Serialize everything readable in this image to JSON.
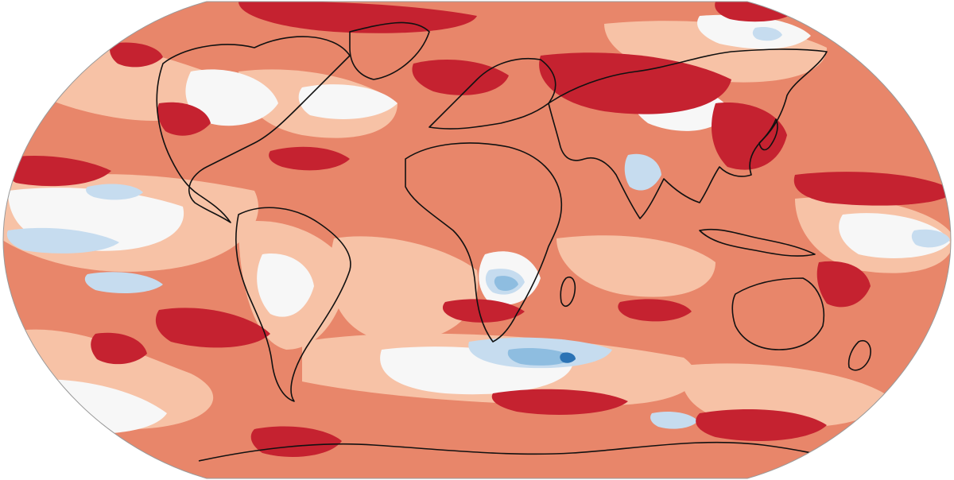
{
  "map": {
    "projection": "robinson",
    "palette": {
      "ocean_background": "#e8866a",
      "band_light": "#f7c2a6",
      "band_medium": "#e6826a",
      "band_strong": "#c52230",
      "neutral": "#f7f7f7",
      "cool_light": "#c6dcef",
      "cool_medium": "#8ebde0",
      "cool_strong": "#2b73b5",
      "coastline": "#111111",
      "frame": "#9a9a9a"
    },
    "legend_visible": false,
    "title_visible": false
  }
}
